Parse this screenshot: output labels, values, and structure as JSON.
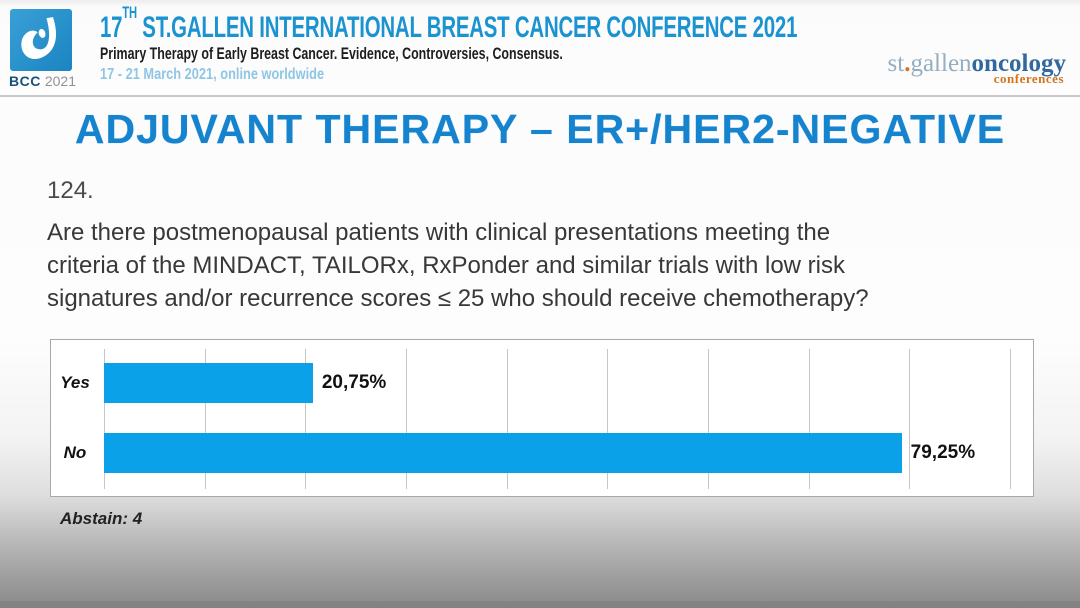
{
  "header": {
    "logo_bcc": "BCC",
    "logo_year": "2021",
    "title_num": "17",
    "title_sup": "TH",
    "title_rest": " ST.GALLEN INTERNATIONAL BREAST CANCER CONFERENCE 2021",
    "subtitle": "Primary Therapy of Early Breast Cancer. Evidence, Controversies, Consensus.",
    "date_line": "17 - 21 March 2021, online worldwide",
    "brand_st": "st",
    "brand_dot": ".",
    "brand_gallen": "gallen",
    "brand_oncology": "oncology",
    "brand_conferences": "conferences"
  },
  "main": {
    "page_title": "ADJUVANT THERAPY – ER+/HER2-NEGATIVE",
    "question_number": "124.",
    "question_lines": [
      "Are there postmenopausal patients with clinical presentations meeting the",
      "criteria of the MINDACT, TAILORx, RxPonder and similar trials with low risk",
      "signatures and/or recurrence scores ≤ 25 who should receive chemotherapy?"
    ],
    "abstain_note": "Abstain: 4"
  },
  "chart_data": {
    "type": "bar",
    "orientation": "horizontal",
    "categories": [
      "Yes",
      "No"
    ],
    "values": [
      20.75,
      79.25
    ],
    "value_labels": [
      "20,75%",
      "79,25%"
    ],
    "abstain": 4,
    "xlim": [
      0,
      92
    ],
    "gridline_step": 10,
    "grid": true,
    "legend": false,
    "title": "",
    "xlabel": "",
    "ylabel": "",
    "bar_color": "#0aa1e9"
  },
  "colors": {
    "header_title_blue": "#1b93d0",
    "page_title_blue": "#1583ce",
    "bar_blue": "#0aa1e9",
    "date_blue": "#8ec6e4",
    "brand_light_blue": "#93aec3",
    "brand_dark_blue": "#31699f",
    "brand_orange": "#d4731d",
    "logo_blue": "#2191cc"
  }
}
